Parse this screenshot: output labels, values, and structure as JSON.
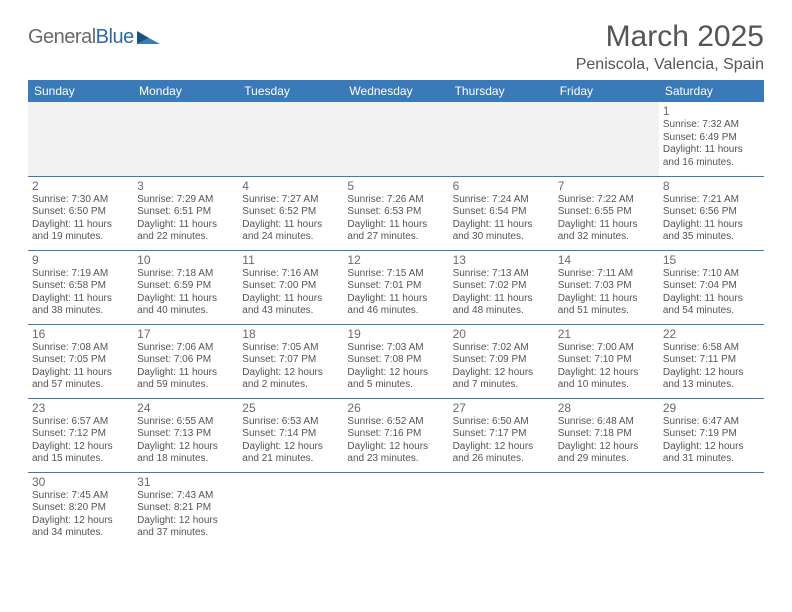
{
  "brand": {
    "general": "General",
    "blue": "Blue"
  },
  "header": {
    "title": "March 2025",
    "location": "Peniscola, Valencia, Spain"
  },
  "colors": {
    "header_bg": "#3a7ab8",
    "header_text": "#ffffff",
    "cell_border": "#3a7ab8",
    "empty_bg": "#f2f2f2",
    "text_muted": "#555555",
    "logo_gray": "#6a6a6a",
    "logo_blue": "#2f6aa8"
  },
  "columns": [
    "Sunday",
    "Monday",
    "Tuesday",
    "Wednesday",
    "Thursday",
    "Friday",
    "Saturday"
  ],
  "weeks": [
    [
      {
        "empty": true
      },
      {
        "empty": true
      },
      {
        "empty": true
      },
      {
        "empty": true
      },
      {
        "empty": true
      },
      {
        "empty": true
      },
      {
        "n": "1",
        "sr": "7:32 AM",
        "ss": "6:49 PM",
        "dl": "11 hours and 16 minutes."
      }
    ],
    [
      {
        "n": "2",
        "sr": "7:30 AM",
        "ss": "6:50 PM",
        "dl": "11 hours and 19 minutes."
      },
      {
        "n": "3",
        "sr": "7:29 AM",
        "ss": "6:51 PM",
        "dl": "11 hours and 22 minutes."
      },
      {
        "n": "4",
        "sr": "7:27 AM",
        "ss": "6:52 PM",
        "dl": "11 hours and 24 minutes."
      },
      {
        "n": "5",
        "sr": "7:26 AM",
        "ss": "6:53 PM",
        "dl": "11 hours and 27 minutes."
      },
      {
        "n": "6",
        "sr": "7:24 AM",
        "ss": "6:54 PM",
        "dl": "11 hours and 30 minutes."
      },
      {
        "n": "7",
        "sr": "7:22 AM",
        "ss": "6:55 PM",
        "dl": "11 hours and 32 minutes."
      },
      {
        "n": "8",
        "sr": "7:21 AM",
        "ss": "6:56 PM",
        "dl": "11 hours and 35 minutes."
      }
    ],
    [
      {
        "n": "9",
        "sr": "7:19 AM",
        "ss": "6:58 PM",
        "dl": "11 hours and 38 minutes."
      },
      {
        "n": "10",
        "sr": "7:18 AM",
        "ss": "6:59 PM",
        "dl": "11 hours and 40 minutes."
      },
      {
        "n": "11",
        "sr": "7:16 AM",
        "ss": "7:00 PM",
        "dl": "11 hours and 43 minutes."
      },
      {
        "n": "12",
        "sr": "7:15 AM",
        "ss": "7:01 PM",
        "dl": "11 hours and 46 minutes."
      },
      {
        "n": "13",
        "sr": "7:13 AM",
        "ss": "7:02 PM",
        "dl": "11 hours and 48 minutes."
      },
      {
        "n": "14",
        "sr": "7:11 AM",
        "ss": "7:03 PM",
        "dl": "11 hours and 51 minutes."
      },
      {
        "n": "15",
        "sr": "7:10 AM",
        "ss": "7:04 PM",
        "dl": "11 hours and 54 minutes."
      }
    ],
    [
      {
        "n": "16",
        "sr": "7:08 AM",
        "ss": "7:05 PM",
        "dl": "11 hours and 57 minutes."
      },
      {
        "n": "17",
        "sr": "7:06 AM",
        "ss": "7:06 PM",
        "dl": "11 hours and 59 minutes."
      },
      {
        "n": "18",
        "sr": "7:05 AM",
        "ss": "7:07 PM",
        "dl": "12 hours and 2 minutes."
      },
      {
        "n": "19",
        "sr": "7:03 AM",
        "ss": "7:08 PM",
        "dl": "12 hours and 5 minutes."
      },
      {
        "n": "20",
        "sr": "7:02 AM",
        "ss": "7:09 PM",
        "dl": "12 hours and 7 minutes."
      },
      {
        "n": "21",
        "sr": "7:00 AM",
        "ss": "7:10 PM",
        "dl": "12 hours and 10 minutes."
      },
      {
        "n": "22",
        "sr": "6:58 AM",
        "ss": "7:11 PM",
        "dl": "12 hours and 13 minutes."
      }
    ],
    [
      {
        "n": "23",
        "sr": "6:57 AM",
        "ss": "7:12 PM",
        "dl": "12 hours and 15 minutes."
      },
      {
        "n": "24",
        "sr": "6:55 AM",
        "ss": "7:13 PM",
        "dl": "12 hours and 18 minutes."
      },
      {
        "n": "25",
        "sr": "6:53 AM",
        "ss": "7:14 PM",
        "dl": "12 hours and 21 minutes."
      },
      {
        "n": "26",
        "sr": "6:52 AM",
        "ss": "7:16 PM",
        "dl": "12 hours and 23 minutes."
      },
      {
        "n": "27",
        "sr": "6:50 AM",
        "ss": "7:17 PM",
        "dl": "12 hours and 26 minutes."
      },
      {
        "n": "28",
        "sr": "6:48 AM",
        "ss": "7:18 PM",
        "dl": "12 hours and 29 minutes."
      },
      {
        "n": "29",
        "sr": "6:47 AM",
        "ss": "7:19 PM",
        "dl": "12 hours and 31 minutes."
      }
    ],
    [
      {
        "n": "30",
        "sr": "7:45 AM",
        "ss": "8:20 PM",
        "dl": "12 hours and 34 minutes."
      },
      {
        "n": "31",
        "sr": "7:43 AM",
        "ss": "8:21 PM",
        "dl": "12 hours and 37 minutes."
      },
      {
        "tail": true
      },
      {
        "tail": true
      },
      {
        "tail": true
      },
      {
        "tail": true
      },
      {
        "tail": true
      }
    ]
  ],
  "labels": {
    "sunrise": "Sunrise: ",
    "sunset": "Sunset: ",
    "daylight": "Daylight: "
  }
}
